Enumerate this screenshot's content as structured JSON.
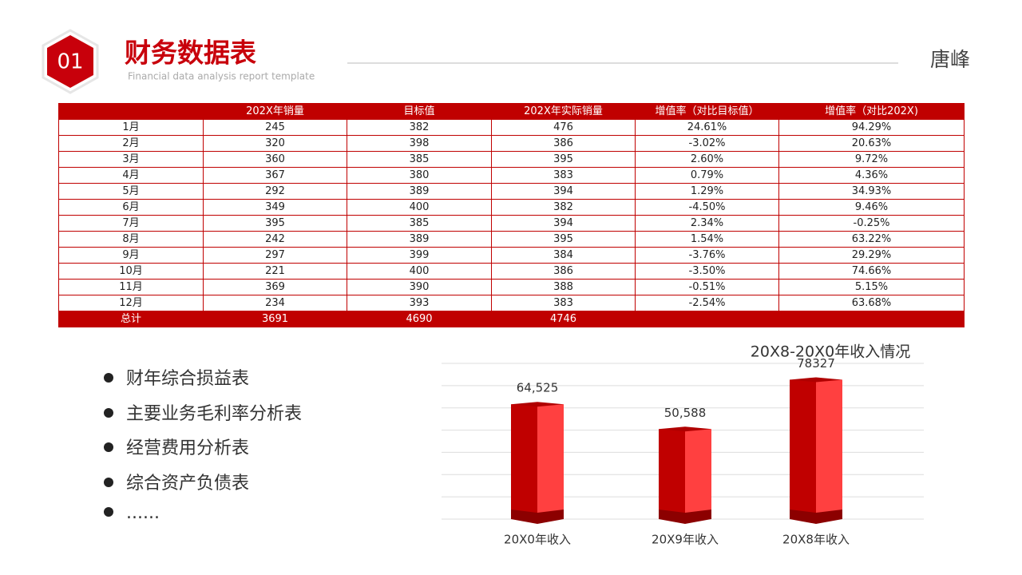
{
  "header": {
    "number": "01",
    "title": "财务数据表",
    "subtitle": "Financial data analysis report template",
    "author": "唐峰"
  },
  "table": {
    "columns": [
      "202X年销量",
      "目标值",
      "202X年实际销量",
      "增值率（对比目标值）",
      "增值率（对比202X)"
    ],
    "rows": [
      [
        "1月",
        "245",
        "382",
        "476",
        "24.61%",
        "94.29%"
      ],
      [
        "2月",
        "320",
        "398",
        "386",
        "-3.02%",
        "20.63%"
      ],
      [
        "3月",
        "360",
        "385",
        "395",
        "2.60%",
        "9.72%"
      ],
      [
        "4月",
        "367",
        "380",
        "383",
        "0.79%",
        "4.36%"
      ],
      [
        "5月",
        "292",
        "389",
        "394",
        "1.29%",
        "34.93%"
      ],
      [
        "6月",
        "349",
        "400",
        "382",
        "-4.50%",
        "9.46%"
      ],
      [
        "7月",
        "395",
        "385",
        "394",
        "2.34%",
        "-0.25%"
      ],
      [
        "8月",
        "242",
        "389",
        "395",
        "1.54%",
        "63.22%"
      ],
      [
        "9月",
        "297",
        "399",
        "384",
        "-3.76%",
        "29.29%"
      ],
      [
        "10月",
        "221",
        "400",
        "386",
        "-3.50%",
        "74.66%"
      ],
      [
        "11月",
        "369",
        "390",
        "388",
        "-0.51%",
        "5.15%"
      ],
      [
        "12月",
        "234",
        "393",
        "383",
        "-2.54%",
        "63.68%"
      ]
    ],
    "total": [
      "总计",
      "3691",
      "4690",
      "4746"
    ]
  },
  "bullets": [
    "财年综合损益表",
    "主要业务毛利率分析表",
    "经营费用分析表",
    "综合资产负债表",
    "......"
  ],
  "chart_data": {
    "type": "bar",
    "title": "20X8-20X0年收入情况",
    "categories": [
      "20X0年收入",
      "20X9年收入",
      "20X8年收入"
    ],
    "values": [
      64525,
      50588,
      78327
    ],
    "value_labels": [
      "64,525",
      "50,588",
      "78327"
    ],
    "ylim": [
      0,
      87500
    ],
    "grid": true
  }
}
